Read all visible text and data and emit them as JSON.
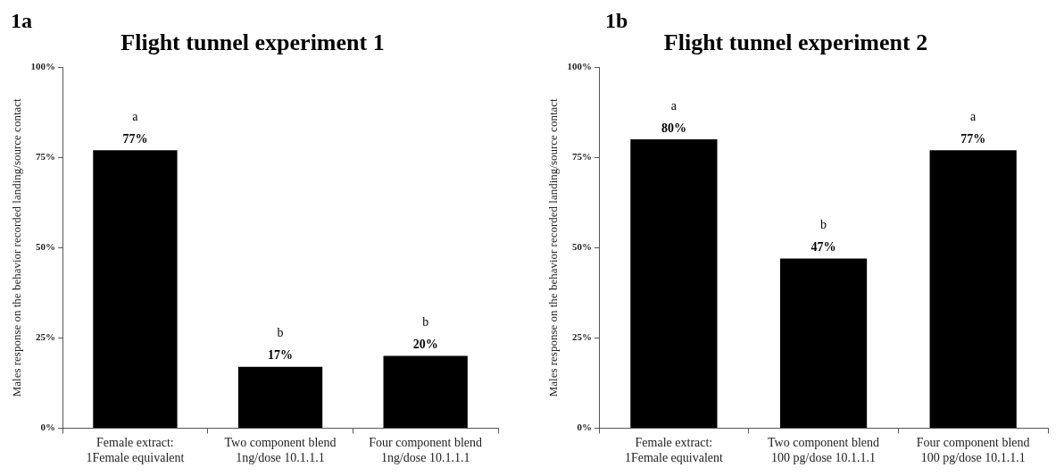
{
  "chart_data": [
    {
      "type": "bar",
      "title": "Flight tunnel experiment 1",
      "ylabel": "Males response on the behavior recorded landing/source contact",
      "categories": [
        "Female extract: 1Female equivalent",
        "Two component blend 1ng/dose 10.1.1.1",
        "Four component blend 1ng/dose 10.1.1.1"
      ],
      "values": [
        77,
        17,
        20
      ],
      "value_labels": [
        "77%",
        "17%",
        "20%"
      ],
      "color": "#000000",
      "ylim": [
        0,
        100
      ],
      "yticks": [
        {
          "value": 0,
          "label": "0%"
        },
        {
          "value": 25,
          "label": "25%"
        },
        {
          "value": 50,
          "label": "50%"
        },
        {
          "value": 75,
          "label": "75%"
        },
        {
          "value": 100,
          "label": "100%"
        }
      ],
      "annotations": [
        "1a",
        {
          "text": "a",
          "x": "Female extract: 1Female equivalent",
          "y": 77
        },
        {
          "text": "b",
          "x": "Two component blend 1ng/dose 10.1.1.1",
          "y": 17
        },
        {
          "text": "b",
          "x": "Four component blend 1ng/dose 10.1.1.1",
          "y": 20
        }
      ]
    },
    {
      "type": "bar",
      "title": "Flight tunnel experiment 2",
      "ylabel": "Males response on the behavior recorded landing/source contact",
      "categories": [
        "Female extract: 1Female equivalent",
        "Two component blend 100 pg/dose 10.1.1.1",
        "Four component blend 100 pg/dose 10.1.1.1"
      ],
      "values": [
        80,
        47,
        77
      ],
      "value_labels": [
        "80%",
        "47%",
        "77%"
      ],
      "color": "#000000",
      "ylim": [
        0,
        100
      ],
      "yticks": [
        {
          "value": 0,
          "label": "0%"
        },
        {
          "value": 25,
          "label": "25%"
        },
        {
          "value": 50,
          "label": "50%"
        },
        {
          "value": 75,
          "label": "75%"
        },
        {
          "value": 100,
          "label": "100%"
        }
      ],
      "annotations": [
        "1b",
        {
          "text": "a",
          "x": "Female extract: 1Female equivalent",
          "y": 80
        },
        {
          "text": "b",
          "x": "Two component blend 100 pg/dose 10.1.1.1",
          "y": 47
        },
        {
          "text": "a",
          "x": "Four component blend 100 pg/dose 10.1.1.1",
          "y": 77
        }
      ]
    }
  ]
}
